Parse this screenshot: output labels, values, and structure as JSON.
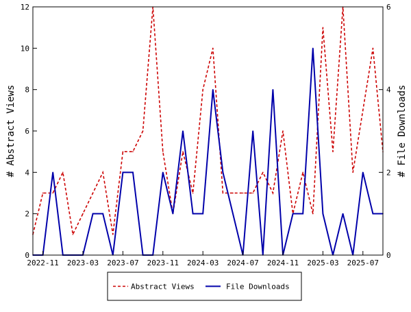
{
  "chart_data": {
    "type": "line",
    "xlabel": "",
    "x_ticks": [
      "2022-11",
      "2023-03",
      "2023-07",
      "2023-11",
      "2024-03",
      "2024-07",
      "2024-11",
      "2025-03",
      "2025-07"
    ],
    "x": [
      "2022-10",
      "2022-11",
      "2022-12",
      "2023-01",
      "2023-02",
      "2023-03",
      "2023-04",
      "2023-05",
      "2023-06",
      "2023-07",
      "2023-08",
      "2023-09",
      "2023-10",
      "2023-11",
      "2023-12",
      "2024-01",
      "2024-02",
      "2024-03",
      "2024-04",
      "2024-05",
      "2024-06",
      "2024-07",
      "2024-08",
      "2024-09",
      "2024-10",
      "2024-11",
      "2024-12",
      "2025-01",
      "2025-02",
      "2025-03",
      "2025-04",
      "2025-05",
      "2025-06",
      "2025-07",
      "2025-08",
      "2025-09"
    ],
    "y_left": {
      "label": "# Abstract Views",
      "ticks": [
        0,
        2,
        4,
        6,
        8,
        10,
        12
      ],
      "range": [
        0,
        12
      ]
    },
    "y_right": {
      "label": "# File Downloads",
      "ticks": [
        0,
        2,
        4,
        6
      ],
      "range": [
        0,
        6
      ]
    },
    "series": [
      {
        "name": "Abstract Views",
        "axis": "left",
        "color": "#cc0000",
        "style": "dashed",
        "values": [
          1,
          3,
          3,
          4,
          1,
          2,
          3,
          4,
          1,
          5,
          5,
          6,
          12,
          5,
          2,
          5,
          3,
          8,
          10,
          3,
          3,
          3,
          3,
          4,
          3,
          6,
          2,
          4,
          2,
          11,
          5,
          12,
          4,
          7,
          10,
          5
        ]
      },
      {
        "name": "File Downloads",
        "axis": "right",
        "color": "#0000aa",
        "style": "solid",
        "values": [
          0,
          0,
          2,
          0,
          0,
          0,
          1,
          1,
          0,
          2,
          2,
          0,
          0,
          2,
          1,
          3,
          1,
          1,
          4,
          2,
          1,
          0,
          3,
          0,
          4,
          0,
          1,
          1,
          5,
          1,
          0,
          1,
          0,
          2,
          1,
          1
        ]
      }
    ],
    "legend": {
      "placement": "bottom-center"
    },
    "grid": false
  }
}
